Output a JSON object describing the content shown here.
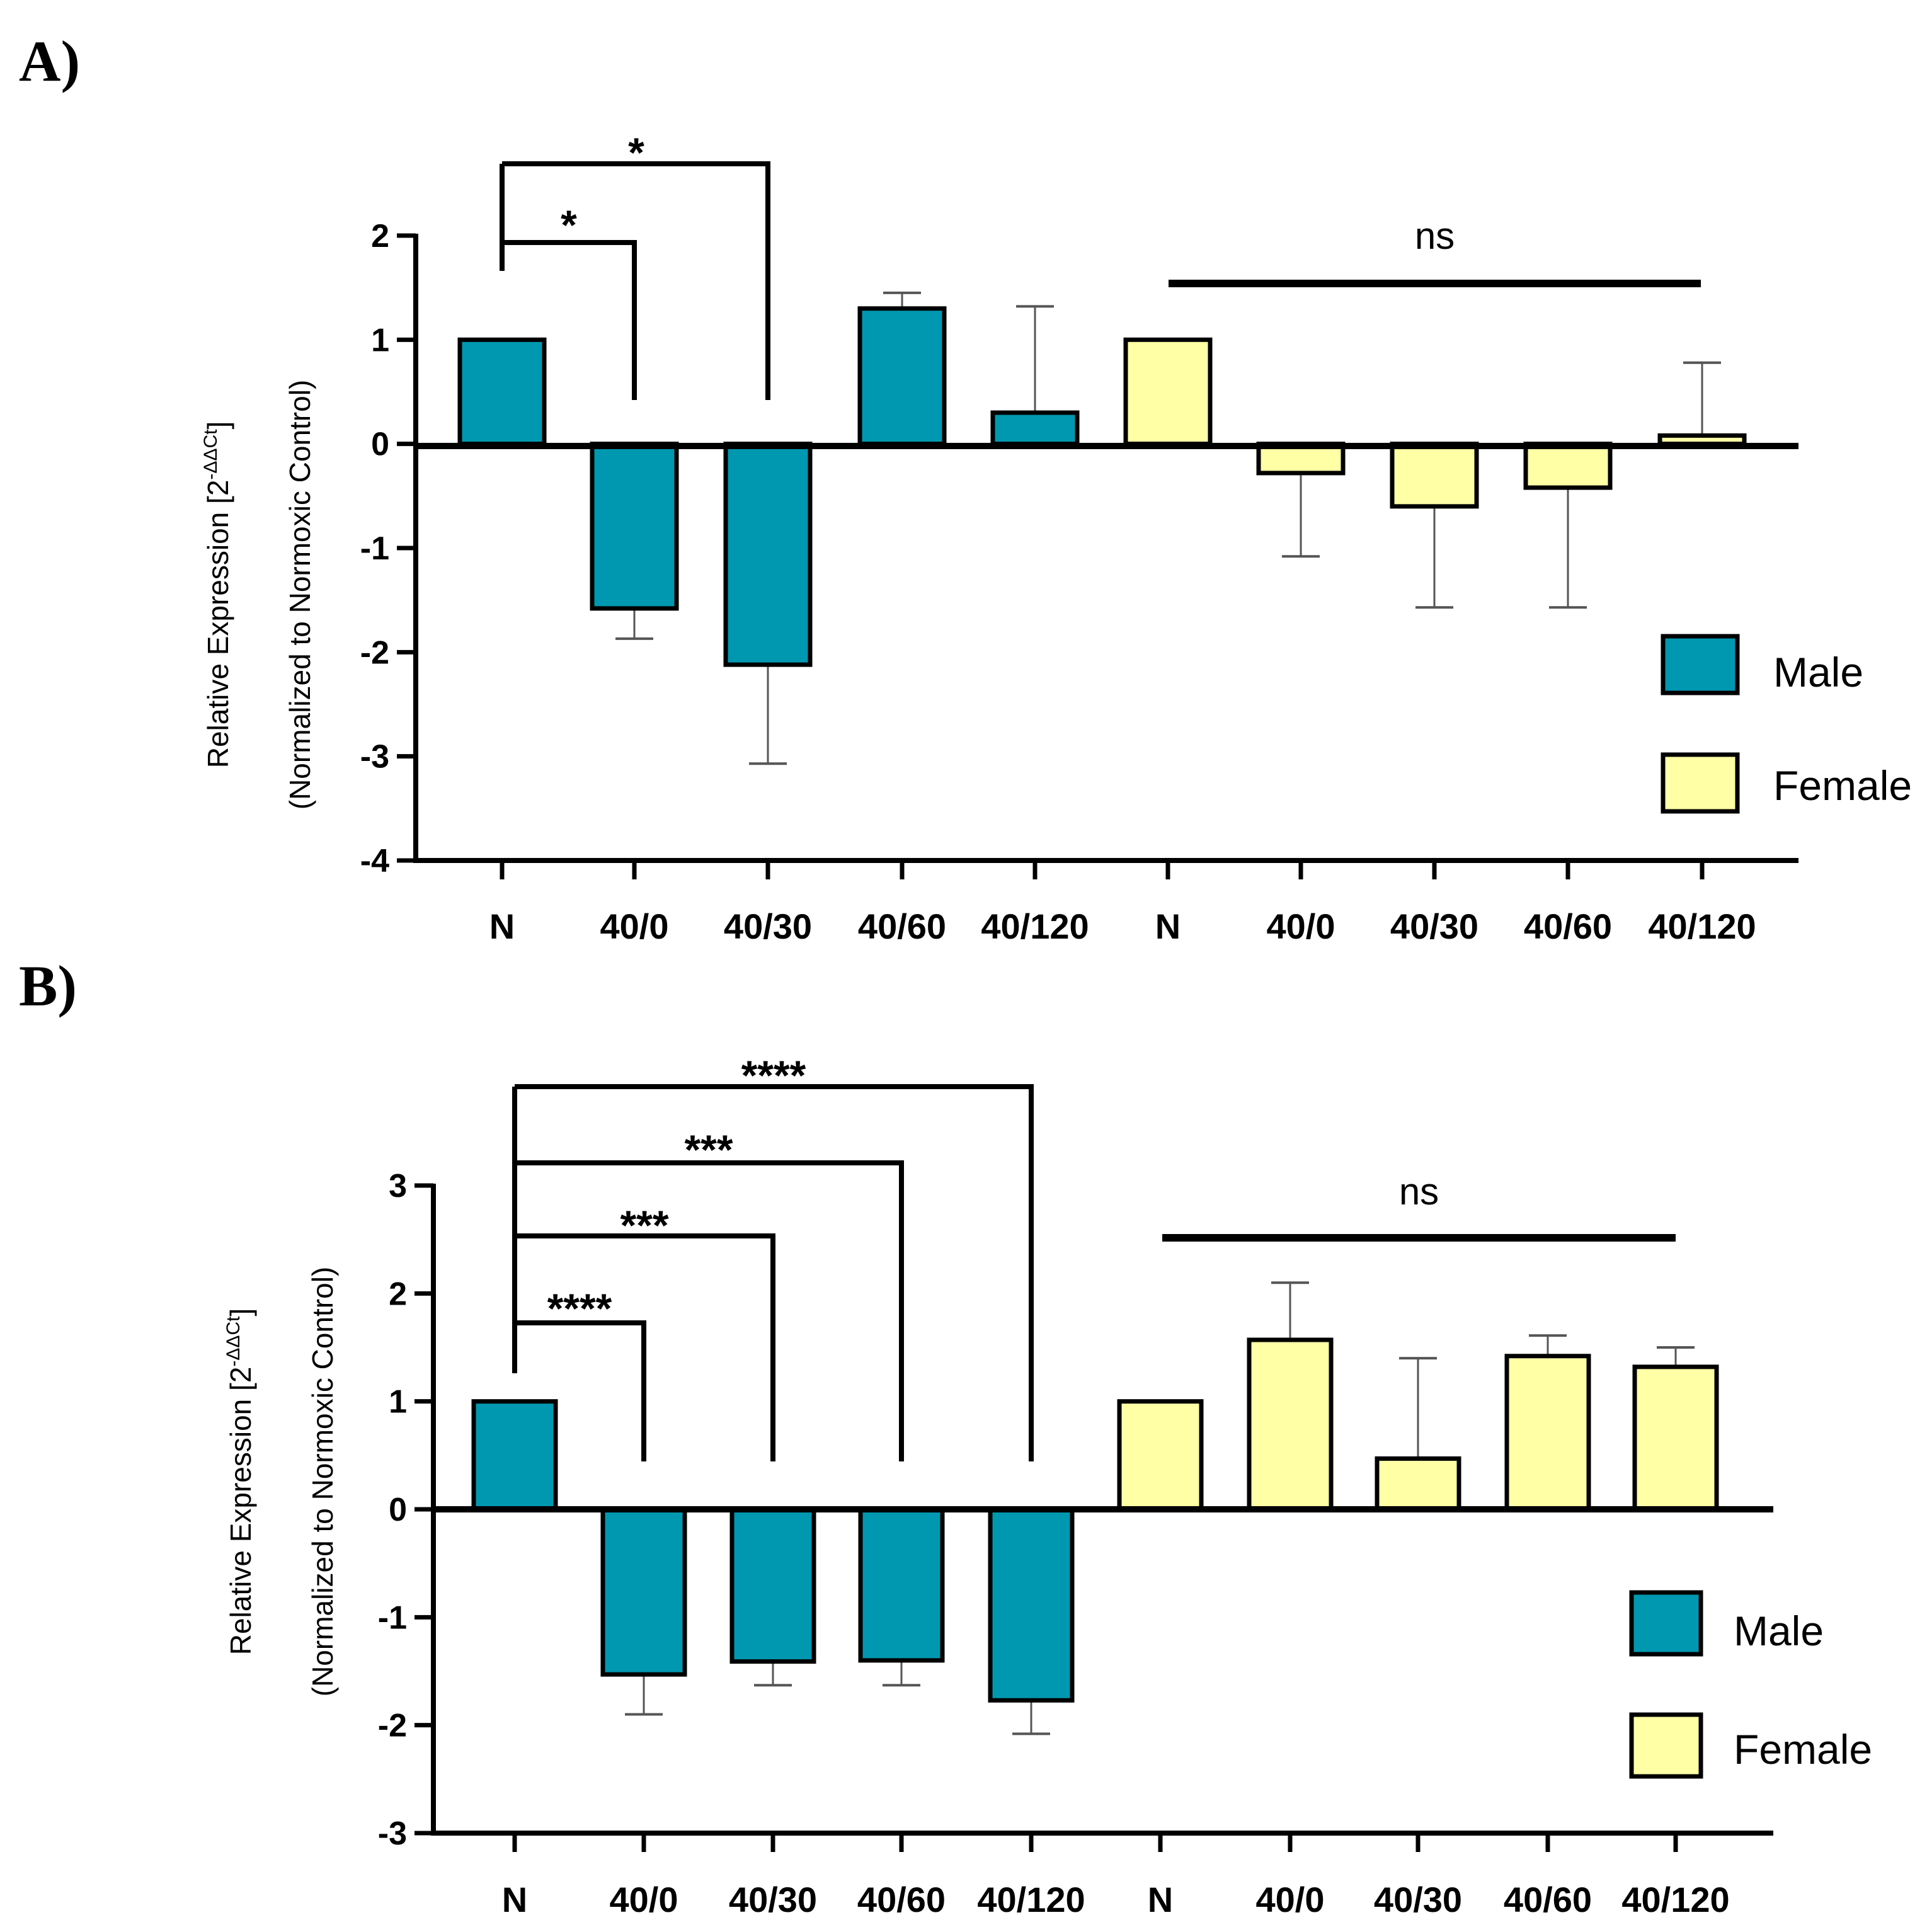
{
  "colors": {
    "male": "#0098b0",
    "female": "#ffffa6",
    "axis": "#000000",
    "errorbar": "#555555"
  },
  "chart_data": [
    {
      "panel": "A)",
      "type": "bar",
      "ylabel_line1": "Relative Expression [2",
      "ylabel_sup": "-ΔΔCt",
      "ylabel_close": "]",
      "ylabel_line2": "(Normalized to Normoxic Control)",
      "ylim": [
        -4,
        2
      ],
      "yticks": [
        "2",
        "1",
        "0",
        "-1",
        "-2",
        "-3",
        "-4"
      ],
      "categories": [
        "N",
        "40/0",
        "40/30",
        "40/60",
        "40/120",
        "N",
        "40/0",
        "40/30",
        "40/60",
        "40/120"
      ],
      "series": [
        {
          "name": "Male",
          "values": [
            1.0,
            -1.58,
            -2.12,
            1.3,
            0.3,
            null,
            null,
            null,
            null,
            null
          ],
          "error_end": [
            null,
            -1.87,
            -3.07,
            1.45,
            1.32,
            null,
            null,
            null,
            null,
            null
          ]
        },
        {
          "name": "Female",
          "values": [
            null,
            null,
            null,
            null,
            null,
            1.0,
            -0.28,
            -0.6,
            -0.42,
            0.08
          ],
          "error_end": [
            null,
            null,
            null,
            null,
            null,
            null,
            -1.08,
            -1.57,
            -1.57,
            0.78
          ]
        }
      ],
      "legend": [
        "Male",
        "Female"
      ],
      "significance": [
        {
          "from": 0,
          "to": 1,
          "label": "*"
        },
        {
          "from": 0,
          "to": 2,
          "label": "*"
        }
      ],
      "ns": {
        "from": 5,
        "to": 9,
        "label": "ns"
      }
    },
    {
      "panel": "B)",
      "type": "bar",
      "ylabel_line1": "Relative Expression [2",
      "ylabel_sup": "-ΔΔCt",
      "ylabel_close": "]",
      "ylabel_line2": "(Normalized to Normoxic Control)",
      "ylim": [
        -3,
        3
      ],
      "yticks": [
        "3",
        "2",
        "1",
        "0",
        "-1",
        "-2",
        "-3"
      ],
      "categories": [
        "N",
        "40/0",
        "40/30",
        "40/60",
        "40/120",
        "N",
        "40/0",
        "40/30",
        "40/60",
        "40/120"
      ],
      "series": [
        {
          "name": "Male",
          "values": [
            1.0,
            -1.53,
            -1.41,
            -1.4,
            -1.77,
            null,
            null,
            null,
            null,
            null
          ],
          "error_end": [
            null,
            -1.9,
            -1.63,
            -1.63,
            -2.08,
            null,
            null,
            null,
            null,
            null
          ]
        },
        {
          "name": "Female",
          "values": [
            null,
            null,
            null,
            null,
            null,
            1.0,
            1.57,
            0.47,
            1.42,
            1.32
          ],
          "error_end": [
            null,
            null,
            null,
            null,
            null,
            null,
            2.1,
            1.4,
            1.61,
            1.5
          ]
        }
      ],
      "legend": [
        "Male",
        "Female"
      ],
      "significance": [
        {
          "from": 0,
          "to": 1,
          "label": "****"
        },
        {
          "from": 0,
          "to": 2,
          "label": "***"
        },
        {
          "from": 0,
          "to": 3,
          "label": "***"
        },
        {
          "from": 0,
          "to": 4,
          "label": "****"
        }
      ],
      "ns": {
        "from": 5,
        "to": 9,
        "label": "ns"
      }
    }
  ]
}
